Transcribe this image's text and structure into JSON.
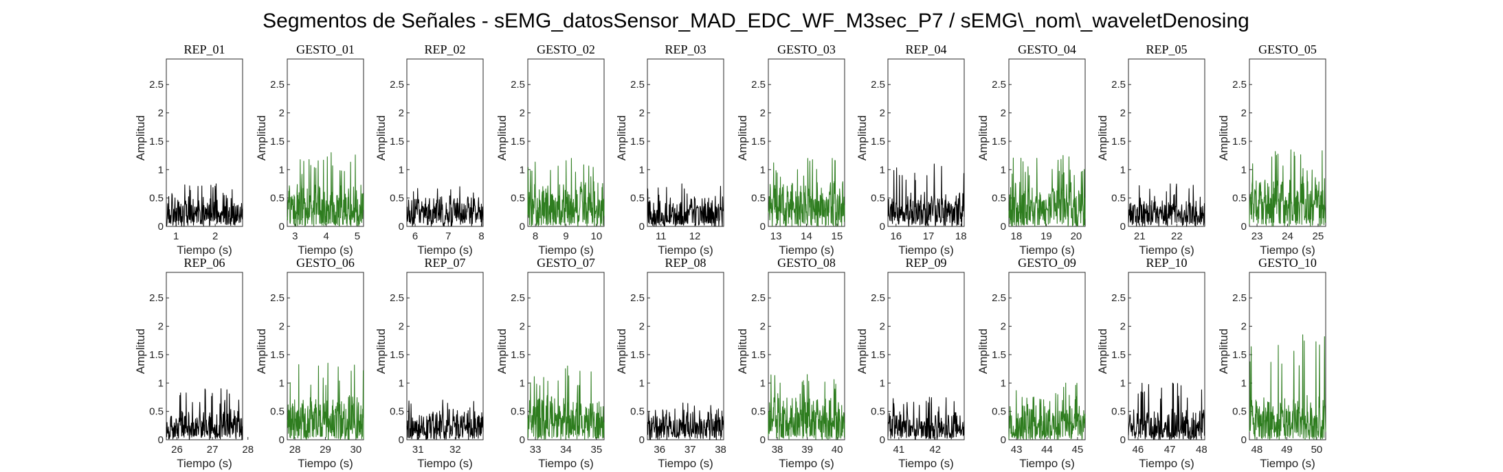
{
  "figure": {
    "title": "Segmentos de Señales - sEMG_datosSensor_MAD_EDC_WF_M3sec_P7 / sEMG\\_nom\\_waveletDenosing",
    "colors": {
      "rep": "#000000",
      "gesto": "#2e7d1f",
      "axes": "#262626"
    }
  },
  "chart_data": [
    {
      "type": "line",
      "title": "REP_01",
      "xlabel": "Tiempo (s)",
      "ylabel": "Amplitud",
      "xlim": [
        0.75,
        2.7
      ],
      "ylim": [
        0,
        2.95
      ],
      "xticks": [
        1,
        2
      ],
      "xtick_labels": [
        "1",
        "2"
      ],
      "yticks": [
        0,
        0.5,
        1,
        1.5,
        2,
        2.5
      ],
      "ytick_labels": [
        "0",
        "0.5",
        "1",
        "1.5",
        "2",
        "2.5"
      ],
      "series": [
        {
          "kind": "rep",
          "peak": 0.75,
          "mean": 0.3
        }
      ]
    },
    {
      "type": "line",
      "title": "GESTO_01",
      "xlabel": "Tiempo (s)",
      "ylabel": "Amplitud",
      "xlim": [
        2.75,
        5.2
      ],
      "ylim": [
        0,
        2.95
      ],
      "xticks": [
        3,
        4,
        5
      ],
      "xtick_labels": [
        "3",
        "4",
        "5"
      ],
      "yticks": [
        0,
        0.5,
        1,
        1.5,
        2,
        2.5
      ],
      "ytick_labels": [
        "0",
        "0.5",
        "1",
        "1.5",
        "2",
        "2.5"
      ],
      "series": [
        {
          "kind": "gesto",
          "peak": 1.3,
          "mean": 0.45
        }
      ]
    },
    {
      "type": "line",
      "title": "REP_02",
      "xlabel": "Tiempo (s)",
      "ylabel": "Amplitud",
      "xlim": [
        5.75,
        8.05
      ],
      "ylim": [
        0,
        2.95
      ],
      "xticks": [
        6,
        7,
        8
      ],
      "xtick_labels": [
        "6",
        "7",
        "8"
      ],
      "yticks": [
        0,
        0.5,
        1,
        1.5,
        2,
        2.5
      ],
      "ytick_labels": [
        "0",
        "0.5",
        "1",
        "1.5",
        "2",
        "2.5"
      ],
      "series": [
        {
          "kind": "rep",
          "peak": 0.7,
          "mean": 0.3
        }
      ]
    },
    {
      "type": "line",
      "title": "GESTO_02",
      "xlabel": "Tiempo (s)",
      "ylabel": "Amplitud",
      "xlim": [
        7.75,
        10.25
      ],
      "ylim": [
        0,
        2.95
      ],
      "xticks": [
        8,
        9,
        10
      ],
      "xtick_labels": [
        "8",
        "9",
        "10"
      ],
      "yticks": [
        0,
        0.5,
        1,
        1.5,
        2,
        2.5
      ],
      "ytick_labels": [
        "0",
        "0.5",
        "1",
        "1.5",
        "2",
        "2.5"
      ],
      "series": [
        {
          "kind": "gesto",
          "peak": 1.2,
          "mean": 0.45
        }
      ]
    },
    {
      "type": "line",
      "title": "REP_03",
      "xlabel": "Tiempo (s)",
      "ylabel": "Amplitud",
      "xlim": [
        10.6,
        12.85
      ],
      "ylim": [
        0,
        2.95
      ],
      "xticks": [
        11,
        12
      ],
      "xtick_labels": [
        "11",
        "12"
      ],
      "yticks": [
        0,
        0.5,
        1,
        1.5,
        2,
        2.5
      ],
      "ytick_labels": [
        "0",
        "0.5",
        "1",
        "1.5",
        "2",
        "2.5"
      ],
      "series": [
        {
          "kind": "rep",
          "peak": 0.75,
          "mean": 0.3
        }
      ]
    },
    {
      "type": "line",
      "title": "GESTO_03",
      "xlabel": "Tiempo (s)",
      "ylabel": "Amplitud",
      "xlim": [
        12.75,
        15.25
      ],
      "ylim": [
        0,
        2.95
      ],
      "xticks": [
        13,
        14,
        15
      ],
      "xtick_labels": [
        "13",
        "14",
        "15"
      ],
      "yticks": [
        0,
        0.5,
        1,
        1.5,
        2,
        2.5
      ],
      "ytick_labels": [
        "0",
        "0.5",
        "1",
        "1.5",
        "2",
        "2.5"
      ],
      "series": [
        {
          "kind": "gesto",
          "peak": 1.2,
          "mean": 0.45
        }
      ]
    },
    {
      "type": "line",
      "title": "REP_04",
      "xlabel": "Tiempo (s)",
      "ylabel": "Amplitud",
      "xlim": [
        15.75,
        18.1
      ],
      "ylim": [
        0,
        2.95
      ],
      "xticks": [
        16,
        17,
        18
      ],
      "xtick_labels": [
        "16",
        "17",
        "18"
      ],
      "yticks": [
        0,
        0.5,
        1,
        1.5,
        2,
        2.5
      ],
      "ytick_labels": [
        "0",
        "0.5",
        "1",
        "1.5",
        "2",
        "2.5"
      ],
      "series": [
        {
          "kind": "rep",
          "peak": 1.1,
          "mean": 0.35
        }
      ]
    },
    {
      "type": "line",
      "title": "GESTO_04",
      "xlabel": "Tiempo (s)",
      "ylabel": "Amplitud",
      "xlim": [
        17.75,
        20.3
      ],
      "ylim": [
        0,
        2.95
      ],
      "xticks": [
        18,
        19,
        20
      ],
      "xtick_labels": [
        "18",
        "19",
        "20"
      ],
      "yticks": [
        0,
        0.5,
        1,
        1.5,
        2,
        2.5
      ],
      "ytick_labels": [
        "0",
        "0.5",
        "1",
        "1.5",
        "2",
        "2.5"
      ],
      "series": [
        {
          "kind": "gesto",
          "peak": 1.25,
          "mean": 0.45
        }
      ]
    },
    {
      "type": "line",
      "title": "REP_05",
      "xlabel": "Tiempo (s)",
      "ylabel": "Amplitud",
      "xlim": [
        20.7,
        22.75
      ],
      "ylim": [
        0,
        2.95
      ],
      "xticks": [
        21,
        22
      ],
      "xtick_labels": [
        "21",
        "22"
      ],
      "yticks": [
        0,
        0.5,
        1,
        1.5,
        2,
        2.5
      ],
      "ytick_labels": [
        "0",
        "0.5",
        "1",
        "1.5",
        "2",
        "2.5"
      ],
      "series": [
        {
          "kind": "rep",
          "peak": 0.75,
          "mean": 0.3
        }
      ]
    },
    {
      "type": "line",
      "title": "GESTO_05",
      "xlabel": "Tiempo (s)",
      "ylabel": "Amplitud",
      "xlim": [
        22.75,
        25.25
      ],
      "ylim": [
        0,
        2.95
      ],
      "xticks": [
        23,
        24,
        25
      ],
      "xtick_labels": [
        "23",
        "24",
        "25"
      ],
      "yticks": [
        0,
        0.5,
        1,
        1.5,
        2,
        2.5
      ],
      "ytick_labels": [
        "0",
        "0.5",
        "1",
        "1.5",
        "2",
        "2.5"
      ],
      "series": [
        {
          "kind": "gesto",
          "peak": 1.35,
          "mean": 0.5
        }
      ]
    },
    {
      "type": "line",
      "title": "REP_06",
      "xlabel": "Tiempo (s)",
      "ylabel": "Amplitud",
      "xlim": [
        25.7,
        27.85
      ],
      "ylim": [
        0,
        2.95
      ],
      "xticks": [
        26,
        27,
        28
      ],
      "xtick_labels": [
        "26",
        "27",
        "28"
      ],
      "yticks": [
        0,
        0.5,
        1,
        1.5,
        2,
        2.5
      ],
      "ytick_labels": [
        "0",
        "0.5",
        "1",
        "1.5",
        "2",
        "2.5"
      ],
      "series": [
        {
          "kind": "rep",
          "peak": 0.9,
          "mean": 0.3
        }
      ]
    },
    {
      "type": "line",
      "title": "GESTO_06",
      "xlabel": "Tiempo (s)",
      "ylabel": "Amplitud",
      "xlim": [
        27.75,
        30.25
      ],
      "ylim": [
        0,
        2.95
      ],
      "xticks": [
        28,
        29,
        30
      ],
      "xtick_labels": [
        "28",
        "29",
        "30"
      ],
      "yticks": [
        0,
        0.5,
        1,
        1.5,
        2,
        2.5
      ],
      "ytick_labels": [
        "0",
        "0.5",
        "1",
        "1.5",
        "2",
        "2.5"
      ],
      "series": [
        {
          "kind": "gesto",
          "peak": 1.35,
          "mean": 0.45
        }
      ]
    },
    {
      "type": "line",
      "title": "REP_07",
      "xlabel": "Tiempo (s)",
      "ylabel": "Amplitud",
      "xlim": [
        30.7,
        32.75
      ],
      "ylim": [
        0,
        2.95
      ],
      "xticks": [
        31,
        32
      ],
      "xtick_labels": [
        "31",
        "32"
      ],
      "yticks": [
        0,
        0.5,
        1,
        1.5,
        2,
        2.5
      ],
      "ytick_labels": [
        "0",
        "0.5",
        "1",
        "1.5",
        "2",
        "2.5"
      ],
      "series": [
        {
          "kind": "rep",
          "peak": 0.7,
          "mean": 0.3
        }
      ]
    },
    {
      "type": "line",
      "title": "GESTO_07",
      "xlabel": "Tiempo (s)",
      "ylabel": "Amplitud",
      "xlim": [
        32.75,
        35.25
      ],
      "ylim": [
        0,
        2.95
      ],
      "xticks": [
        33,
        34,
        35
      ],
      "xtick_labels": [
        "33",
        "34",
        "35"
      ],
      "yticks": [
        0,
        0.5,
        1,
        1.5,
        2,
        2.5
      ],
      "ytick_labels": [
        "0",
        "0.5",
        "1",
        "1.5",
        "2",
        "2.5"
      ],
      "series": [
        {
          "kind": "gesto",
          "peak": 1.3,
          "mean": 0.45
        }
      ]
    },
    {
      "type": "line",
      "title": "REP_08",
      "xlabel": "Tiempo (s)",
      "ylabel": "Amplitud",
      "xlim": [
        35.6,
        38.1
      ],
      "ylim": [
        0,
        2.95
      ],
      "xticks": [
        36,
        37,
        38
      ],
      "xtick_labels": [
        "36",
        "37",
        "38"
      ],
      "yticks": [
        0,
        0.5,
        1,
        1.5,
        2,
        2.5
      ],
      "ytick_labels": [
        "0",
        "0.5",
        "1",
        "1.5",
        "2",
        "2.5"
      ],
      "series": [
        {
          "kind": "rep",
          "peak": 0.65,
          "mean": 0.3
        }
      ]
    },
    {
      "type": "line",
      "title": "GESTO_08",
      "xlabel": "Tiempo (s)",
      "ylabel": "Amplitud",
      "xlim": [
        37.7,
        40.25
      ],
      "ylim": [
        0,
        2.95
      ],
      "xticks": [
        38,
        39,
        40
      ],
      "xtick_labels": [
        "38",
        "39",
        "40"
      ],
      "yticks": [
        0,
        0.5,
        1,
        1.5,
        2,
        2.5
      ],
      "ytick_labels": [
        "0",
        "0.5",
        "1",
        "1.5",
        "2",
        "2.5"
      ],
      "series": [
        {
          "kind": "gesto",
          "peak": 1.15,
          "mean": 0.45
        }
      ]
    },
    {
      "type": "line",
      "title": "REP_09",
      "xlabel": "Tiempo (s)",
      "ylabel": "Amplitud",
      "xlim": [
        40.7,
        42.8
      ],
      "ylim": [
        0,
        2.95
      ],
      "xticks": [
        41,
        42
      ],
      "xtick_labels": [
        "41",
        "42"
      ],
      "yticks": [
        0,
        0.5,
        1,
        1.5,
        2,
        2.5
      ],
      "ytick_labels": [
        "0",
        "0.5",
        "1",
        "1.5",
        "2",
        "2.5"
      ],
      "series": [
        {
          "kind": "rep",
          "peak": 0.75,
          "mean": 0.3
        }
      ]
    },
    {
      "type": "line",
      "title": "GESTO_09",
      "xlabel": "Tiempo (s)",
      "ylabel": "Amplitud",
      "xlim": [
        42.75,
        45.25
      ],
      "ylim": [
        0,
        2.95
      ],
      "xticks": [
        43,
        44,
        45
      ],
      "xtick_labels": [
        "43",
        "44",
        "45"
      ],
      "yticks": [
        0,
        0.5,
        1,
        1.5,
        2,
        2.5
      ],
      "ytick_labels": [
        "0",
        "0.5",
        "1",
        "1.5",
        "2",
        "2.5"
      ],
      "series": [
        {
          "kind": "gesto",
          "peak": 1.0,
          "mean": 0.4
        }
      ]
    },
    {
      "type": "line",
      "title": "REP_10",
      "xlabel": "Tiempo (s)",
      "ylabel": "Amplitud",
      "xlim": [
        45.7,
        48.1
      ],
      "ylim": [
        0,
        2.95
      ],
      "xticks": [
        46,
        47,
        48
      ],
      "xtick_labels": [
        "46",
        "47",
        "48"
      ],
      "yticks": [
        0,
        0.5,
        1,
        1.5,
        2,
        2.5
      ],
      "ytick_labels": [
        "0",
        "0.5",
        "1",
        "1.5",
        "2",
        "2.5"
      ],
      "series": [
        {
          "kind": "rep",
          "peak": 1.0,
          "mean": 0.3
        }
      ]
    },
    {
      "type": "line",
      "title": "GESTO_10",
      "xlabel": "Tiempo (s)",
      "ylabel": "Amplitud",
      "xlim": [
        47.75,
        50.3
      ],
      "ylim": [
        0,
        2.95
      ],
      "xticks": [
        48,
        49,
        50
      ],
      "xtick_labels": [
        "48",
        "49",
        "50"
      ],
      "yticks": [
        0,
        0.5,
        1,
        1.5,
        2,
        2.5
      ],
      "ytick_labels": [
        "0",
        "0.5",
        "1",
        "1.5",
        "2",
        "2.5"
      ],
      "series": [
        {
          "kind": "gesto",
          "peak": 1.85,
          "mean": 0.45
        }
      ]
    }
  ]
}
